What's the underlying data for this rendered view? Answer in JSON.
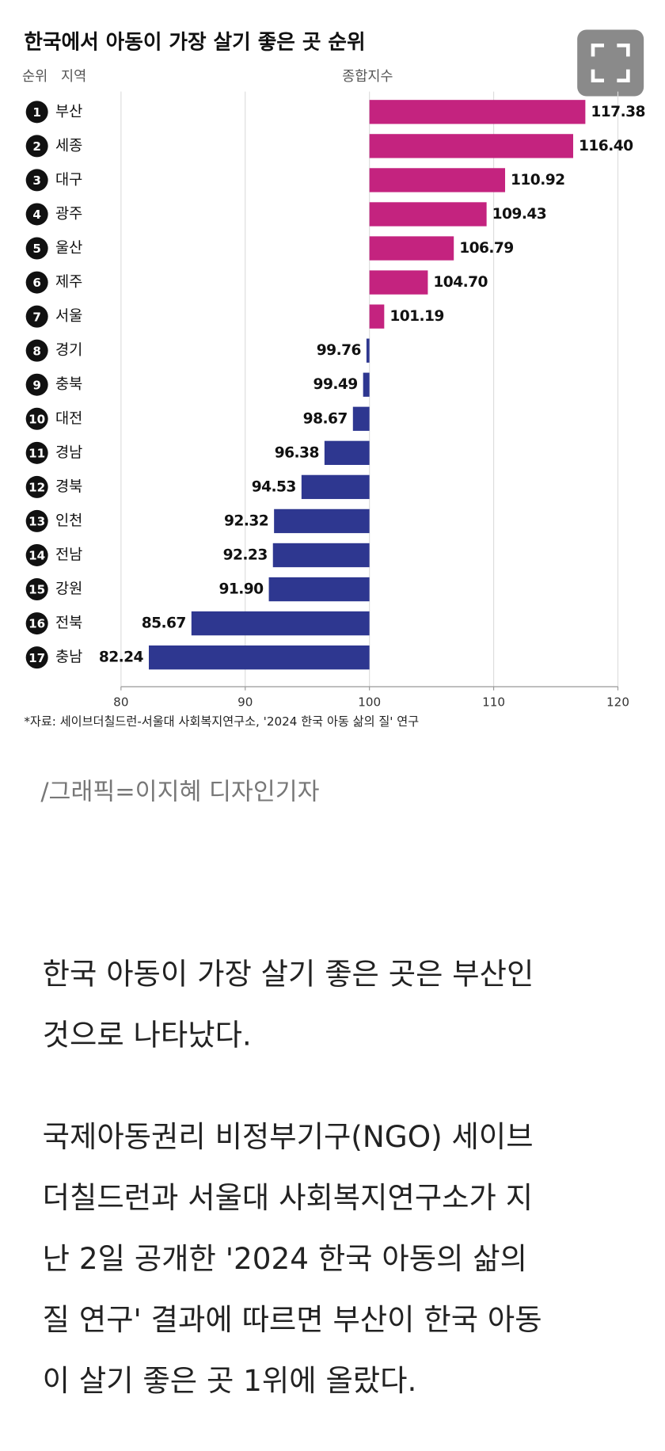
{
  "chart_data": {
    "type": "hbar",
    "title": "한국에서 아동이 가장 살기 좋은 곳 순위",
    "rank_header": "순위",
    "region_header": "지역",
    "value_header": "종합지수",
    "ranks": [
      1,
      2,
      3,
      4,
      5,
      6,
      7,
      8,
      9,
      10,
      11,
      12,
      13,
      14,
      15,
      16,
      17
    ],
    "categories": [
      "부산",
      "세종",
      "대구",
      "광주",
      "울산",
      "제주",
      "서울",
      "경기",
      "충북",
      "대전",
      "경남",
      "경북",
      "인천",
      "전남",
      "강원",
      "전북",
      "충남"
    ],
    "values": [
      117.38,
      116.4,
      110.92,
      109.43,
      106.79,
      104.7,
      101.19,
      99.76,
      99.49,
      98.67,
      96.38,
      94.53,
      92.32,
      92.23,
      91.9,
      85.67,
      82.24
    ],
    "value_labels": [
      "117.38",
      "116.40",
      "110.92",
      "109.43",
      "106.79",
      "104.70",
      "101.19",
      "99.76",
      "99.49",
      "98.67",
      "96.38",
      "94.53",
      "92.32",
      "92.23",
      "91.90",
      "85.67",
      "82.24"
    ],
    "baseline": 100,
    "color_above": "#c4237f",
    "color_below": "#2e3790",
    "xlim": [
      80,
      120
    ],
    "xticks": [
      80,
      90,
      100,
      110,
      120
    ],
    "grid": true,
    "source": "*자료: 세이브더칠드런-서울대 사회복지연구소, '2024 한국 아동 삶의 질' 연구"
  },
  "caption": "/그래픽=이지혜 디자인기자",
  "paragraphs": [
    [
      "한국 아동이 가장 살기 좋은 곳은 부산인",
      "것으로 나타났다."
    ],
    [
      "국제아동권리 비정부기구(NGO) 세이브",
      "더칠드런과 서울대 사회복지연구소가 지",
      "난 2일 공개한 '2024 한국 아동의 삶의",
      "질 연구' 결과에 따르면 부산이 한국 아동",
      "이 살기 좋은 곳 1위에 올랐다."
    ]
  ]
}
